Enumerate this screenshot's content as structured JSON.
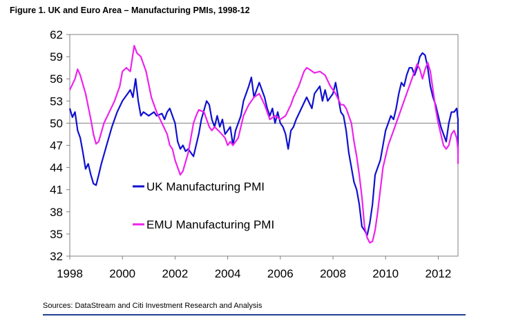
{
  "figure": {
    "title": "Figure 1. UK and Euro Area – Manufacturing PMIs, 1998-12",
    "source": "Sources: DataStream and Citi Investment Research and Analysis"
  },
  "chart_data": {
    "type": "line",
    "title": "Figure 1. UK and Euro Area – Manufacturing PMIs, 1998-12",
    "xlabel": "",
    "ylabel": "",
    "xlim": [
      1998,
      2012.75
    ],
    "ylim": [
      32,
      62
    ],
    "x_ticks": [
      1998,
      2000,
      2002,
      2004,
      2006,
      2008,
      2010,
      2012
    ],
    "x_tick_labels": [
      "1998",
      "2000",
      "2002",
      "2004",
      "2006",
      "2008",
      "2010",
      "2012"
    ],
    "y_ticks": [
      32,
      35,
      38,
      41,
      44,
      47,
      50,
      53,
      56,
      59,
      62
    ],
    "y_tick_labels": [
      "32",
      "35",
      "38",
      "41",
      "44",
      "47",
      "50",
      "53",
      "56",
      "59",
      "62"
    ],
    "reference_line": 50,
    "grid": false,
    "legend_position": "center-left",
    "series": [
      {
        "name": "UK Manufacturing PMI",
        "color": "#1010d0",
        "points": [
          [
            1998.0,
            52.0
          ],
          [
            1998.1,
            50.8
          ],
          [
            1998.2,
            51.5
          ],
          [
            1998.3,
            49.0
          ],
          [
            1998.4,
            48.0
          ],
          [
            1998.5,
            46.0
          ],
          [
            1998.6,
            43.8
          ],
          [
            1998.7,
            44.5
          ],
          [
            1998.8,
            43.0
          ],
          [
            1998.9,
            41.8
          ],
          [
            1999.0,
            41.6
          ],
          [
            1999.1,
            43.0
          ],
          [
            1999.2,
            44.5
          ],
          [
            1999.4,
            47.0
          ],
          [
            1999.6,
            49.5
          ],
          [
            1999.8,
            51.5
          ],
          [
            2000.0,
            53.0
          ],
          [
            2000.2,
            54.0
          ],
          [
            2000.3,
            54.5
          ],
          [
            2000.4,
            53.5
          ],
          [
            2000.5,
            56.0
          ],
          [
            2000.6,
            53.0
          ],
          [
            2000.7,
            51.0
          ],
          [
            2000.8,
            51.5
          ],
          [
            2001.0,
            51.0
          ],
          [
            2001.2,
            51.5
          ],
          [
            2001.3,
            51.0
          ],
          [
            2001.5,
            51.3
          ],
          [
            2001.6,
            50.5
          ],
          [
            2001.7,
            51.5
          ],
          [
            2001.8,
            52.0
          ],
          [
            2001.9,
            51.0
          ],
          [
            2002.0,
            50.0
          ],
          [
            2002.1,
            47.5
          ],
          [
            2002.2,
            46.5
          ],
          [
            2002.3,
            47.0
          ],
          [
            2002.4,
            46.2
          ],
          [
            2002.5,
            46.5
          ],
          [
            2002.6,
            46.0
          ],
          [
            2002.7,
            45.5
          ],
          [
            2002.8,
            47.0
          ],
          [
            2002.9,
            48.5
          ],
          [
            2003.0,
            50.5
          ],
          [
            2003.2,
            53.0
          ],
          [
            2003.3,
            52.5
          ],
          [
            2003.4,
            50.5
          ],
          [
            2003.5,
            49.5
          ],
          [
            2003.6,
            51.0
          ],
          [
            2003.7,
            49.5
          ],
          [
            2003.8,
            50.5
          ],
          [
            2003.9,
            48.5
          ],
          [
            2004.0,
            49.0
          ],
          [
            2004.1,
            49.5
          ],
          [
            2004.2,
            47.0
          ],
          [
            2004.3,
            49.0
          ],
          [
            2004.5,
            51.0
          ],
          [
            2004.6,
            53.0
          ],
          [
            2004.8,
            55.0
          ],
          [
            2004.9,
            56.2
          ],
          [
            2005.0,
            53.5
          ],
          [
            2005.2,
            55.5
          ],
          [
            2005.4,
            53.5
          ],
          [
            2005.5,
            52.0
          ],
          [
            2005.6,
            51.0
          ],
          [
            2005.7,
            52.0
          ],
          [
            2005.8,
            50.0
          ],
          [
            2005.9,
            51.5
          ],
          [
            2006.0,
            50.0
          ],
          [
            2006.1,
            49.5
          ],
          [
            2006.2,
            48.5
          ],
          [
            2006.3,
            46.5
          ],
          [
            2006.4,
            49.0
          ],
          [
            2006.5,
            49.5
          ],
          [
            2006.6,
            50.5
          ],
          [
            2006.8,
            52.0
          ],
          [
            2007.0,
            53.5
          ],
          [
            2007.2,
            52.0
          ],
          [
            2007.3,
            54.0
          ],
          [
            2007.5,
            55.0
          ],
          [
            2007.6,
            53.0
          ],
          [
            2007.7,
            54.5
          ],
          [
            2007.8,
            53.0
          ],
          [
            2008.0,
            54.0
          ],
          [
            2008.1,
            55.5
          ],
          [
            2008.2,
            53.5
          ],
          [
            2008.3,
            51.5
          ],
          [
            2008.4,
            51.0
          ],
          [
            2008.5,
            49.0
          ],
          [
            2008.6,
            46.0
          ],
          [
            2008.7,
            44.0
          ],
          [
            2008.8,
            42.0
          ],
          [
            2008.9,
            41.0
          ],
          [
            2009.0,
            39.0
          ],
          [
            2009.1,
            36.0
          ],
          [
            2009.2,
            35.5
          ],
          [
            2009.3,
            34.8
          ],
          [
            2009.4,
            36.5
          ],
          [
            2009.5,
            39.0
          ],
          [
            2009.6,
            43.0
          ],
          [
            2009.8,
            45.0
          ],
          [
            2010.0,
            49.0
          ],
          [
            2010.2,
            51.0
          ],
          [
            2010.3,
            50.5
          ],
          [
            2010.4,
            52.0
          ],
          [
            2010.5,
            54.0
          ],
          [
            2010.6,
            55.5
          ],
          [
            2010.7,
            55.0
          ],
          [
            2010.8,
            56.5
          ],
          [
            2010.9,
            57.5
          ],
          [
            2011.0,
            57.5
          ],
          [
            2011.1,
            56.5
          ],
          [
            2011.2,
            57.5
          ],
          [
            2011.3,
            59.0
          ],
          [
            2011.4,
            59.5
          ],
          [
            2011.5,
            59.2
          ],
          [
            2011.6,
            57.5
          ],
          [
            2011.7,
            55.0
          ],
          [
            2011.8,
            53.5
          ],
          [
            2011.9,
            52.5
          ],
          [
            2012.0,
            51.0
          ],
          [
            2012.1,
            49.5
          ],
          [
            2012.2,
            48.5
          ],
          [
            2012.3,
            47.5
          ],
          [
            2012.4,
            50.0
          ],
          [
            2012.5,
            51.5
          ],
          [
            2012.6,
            51.5
          ],
          [
            2012.7,
            52.0
          ],
          [
            2012.8,
            50.5
          ],
          [
            2012.9,
            49.0
          ],
          [
            2012.95,
            46.0
          ]
        ]
      },
      {
        "name": "EMU Manufacturing PMI",
        "color": "#ee22ee",
        "points": [
          [
            1998.0,
            54.5
          ],
          [
            1998.2,
            56.0
          ],
          [
            1998.3,
            57.3
          ],
          [
            1998.4,
            56.5
          ],
          [
            1998.6,
            54.0
          ],
          [
            1998.8,
            50.5
          ],
          [
            1998.9,
            48.5
          ],
          [
            1999.0,
            47.2
          ],
          [
            1999.1,
            47.5
          ],
          [
            1999.3,
            50.0
          ],
          [
            1999.5,
            51.5
          ],
          [
            1999.7,
            53.0
          ],
          [
            1999.9,
            55.0
          ],
          [
            2000.0,
            57.0
          ],
          [
            2000.15,
            57.5
          ],
          [
            2000.3,
            57.0
          ],
          [
            2000.45,
            60.5
          ],
          [
            2000.55,
            59.5
          ],
          [
            2000.7,
            59.0
          ],
          [
            2000.9,
            57.0
          ],
          [
            2001.1,
            53.5
          ],
          [
            2001.3,
            51.5
          ],
          [
            2001.5,
            50.0
          ],
          [
            2001.7,
            48.5
          ],
          [
            2001.8,
            47.0
          ],
          [
            2001.9,
            46.5
          ],
          [
            2002.0,
            45.0
          ],
          [
            2002.1,
            44.0
          ],
          [
            2002.2,
            43.0
          ],
          [
            2002.3,
            43.5
          ],
          [
            2002.5,
            46.0
          ],
          [
            2002.6,
            48.0
          ],
          [
            2002.7,
            50.0
          ],
          [
            2002.8,
            51.0
          ],
          [
            2002.9,
            51.8
          ],
          [
            2003.1,
            51.5
          ],
          [
            2003.3,
            49.5
          ],
          [
            2003.4,
            49.0
          ],
          [
            2003.5,
            49.5
          ],
          [
            2003.7,
            48.8
          ],
          [
            2003.9,
            48.0
          ],
          [
            2004.0,
            47.0
          ],
          [
            2004.1,
            47.5
          ],
          [
            2004.2,
            47.0
          ],
          [
            2004.4,
            48.0
          ],
          [
            2004.6,
            51.0
          ],
          [
            2004.8,
            52.5
          ],
          [
            2005.0,
            53.5
          ],
          [
            2005.2,
            54.0
          ],
          [
            2005.4,
            52.5
          ],
          [
            2005.5,
            51.5
          ],
          [
            2005.6,
            50.5
          ],
          [
            2005.8,
            51.0
          ],
          [
            2006.0,
            50.5
          ],
          [
            2006.2,
            51.0
          ],
          [
            2006.4,
            52.5
          ],
          [
            2006.5,
            53.5
          ],
          [
            2006.7,
            55.0
          ],
          [
            2006.9,
            57.0
          ],
          [
            2007.0,
            57.5
          ],
          [
            2007.1,
            57.3
          ],
          [
            2007.3,
            56.8
          ],
          [
            2007.5,
            57.0
          ],
          [
            2007.7,
            56.5
          ],
          [
            2007.9,
            55.0
          ],
          [
            2008.0,
            54.5
          ],
          [
            2008.1,
            54.0
          ],
          [
            2008.3,
            52.5
          ],
          [
            2008.4,
            52.5
          ],
          [
            2008.5,
            52.0
          ],
          [
            2008.6,
            51.0
          ],
          [
            2008.7,
            50.0
          ],
          [
            2008.8,
            47.5
          ],
          [
            2008.9,
            45.5
          ],
          [
            2009.0,
            43.0
          ],
          [
            2009.1,
            40.0
          ],
          [
            2009.2,
            36.0
          ],
          [
            2009.3,
            34.5
          ],
          [
            2009.4,
            33.8
          ],
          [
            2009.5,
            34.0
          ],
          [
            2009.6,
            35.5
          ],
          [
            2009.7,
            38.0
          ],
          [
            2009.8,
            41.0
          ],
          [
            2009.9,
            44.0
          ],
          [
            2010.1,
            47.0
          ],
          [
            2010.3,
            49.0
          ],
          [
            2010.5,
            51.0
          ],
          [
            2010.7,
            53.0
          ],
          [
            2010.9,
            55.0
          ],
          [
            2011.1,
            57.0
          ],
          [
            2011.2,
            58.0
          ],
          [
            2011.3,
            57.3
          ],
          [
            2011.4,
            56.0
          ],
          [
            2011.5,
            57.3
          ],
          [
            2011.6,
            58.2
          ],
          [
            2011.7,
            57.0
          ],
          [
            2011.8,
            54.5
          ],
          [
            2011.9,
            52.0
          ],
          [
            2012.0,
            50.0
          ],
          [
            2012.1,
            48.5
          ],
          [
            2012.2,
            47.0
          ],
          [
            2012.3,
            46.5
          ],
          [
            2012.4,
            47.0
          ],
          [
            2012.5,
            48.5
          ],
          [
            2012.6,
            49.0
          ],
          [
            2012.7,
            48.0
          ],
          [
            2012.8,
            46.5
          ],
          [
            2012.9,
            45.5
          ],
          [
            2012.95,
            44.5
          ]
        ]
      }
    ]
  }
}
